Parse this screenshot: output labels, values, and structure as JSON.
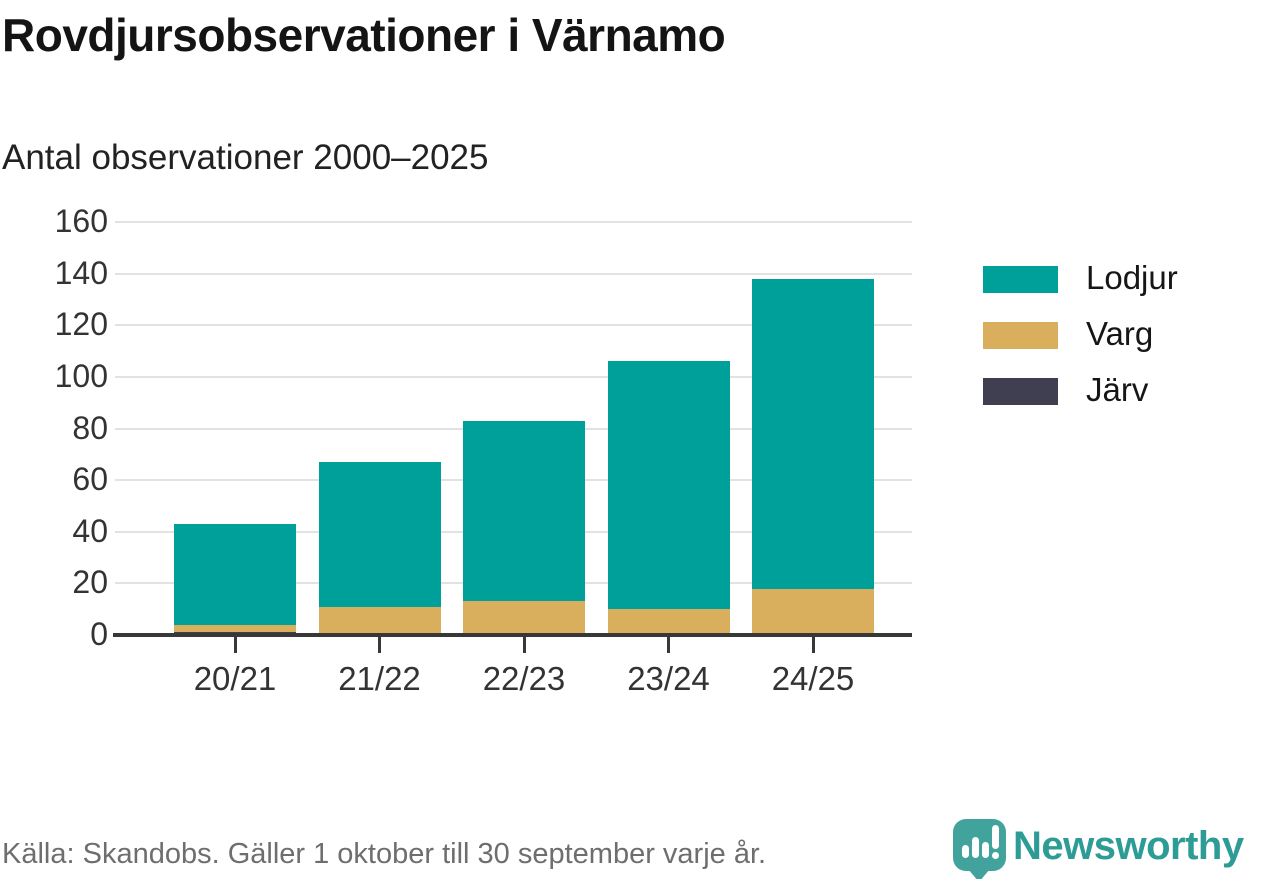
{
  "title": "Rovdjursobservationer i Värnamo",
  "subtitle": "Antal observationer 2000–2025",
  "footer": {
    "source": "Källa: Skandobs. Gäller 1 oktober till 30 september varje år.",
    "brand": "Newsworthy"
  },
  "colors": {
    "lodjur_teal": "#00a09a",
    "varg_gold": "#d9af5e",
    "jarv_dark": "#3f3f51",
    "axis": "#383838",
    "gridline": "#e2e2e2",
    "tick_label": "#333333",
    "footer_text": "#6e6e6e",
    "brand_teal": "#42a39c",
    "brand_text_teal": "#2e9c96"
  },
  "legend": {
    "items": [
      {
        "label": "Lodjur",
        "color": "#00a09a"
      },
      {
        "label": "Varg",
        "color": "#d9af5e"
      },
      {
        "label": "Järv",
        "color": "#3f3f51"
      }
    ]
  },
  "chart_data": {
    "type": "bar",
    "stacked": true,
    "title": "Rovdjursobservationer i Värnamo",
    "subtitle": "Antal observationer 2000–2025",
    "categories": [
      "20/21",
      "21/22",
      "22/23",
      "23/24",
      "24/25"
    ],
    "series": [
      {
        "name": "Lodjur",
        "color": "#00a09a",
        "values": [
          39,
          56,
          70,
          96,
          120
        ]
      },
      {
        "name": "Varg",
        "color": "#d9af5e",
        "values": [
          3,
          11,
          13,
          10,
          18
        ]
      },
      {
        "name": "Järv",
        "color": "#3f3f51",
        "values": [
          1,
          0,
          0,
          0,
          0
        ]
      }
    ],
    "stack_order_bottom_to_top": [
      "Järv",
      "Varg",
      "Lodjur"
    ],
    "totals": [
      43,
      67,
      83,
      106,
      138
    ],
    "xlabel": "",
    "ylabel": "",
    "ylim": [
      0,
      160
    ],
    "yticks": [
      0,
      20,
      40,
      60,
      80,
      100,
      120,
      140,
      160
    ],
    "grid": "horizontal",
    "legend_position": "right",
    "source_note": "Källa: Skandobs. Gäller 1 oktober till 30 september varje år."
  }
}
